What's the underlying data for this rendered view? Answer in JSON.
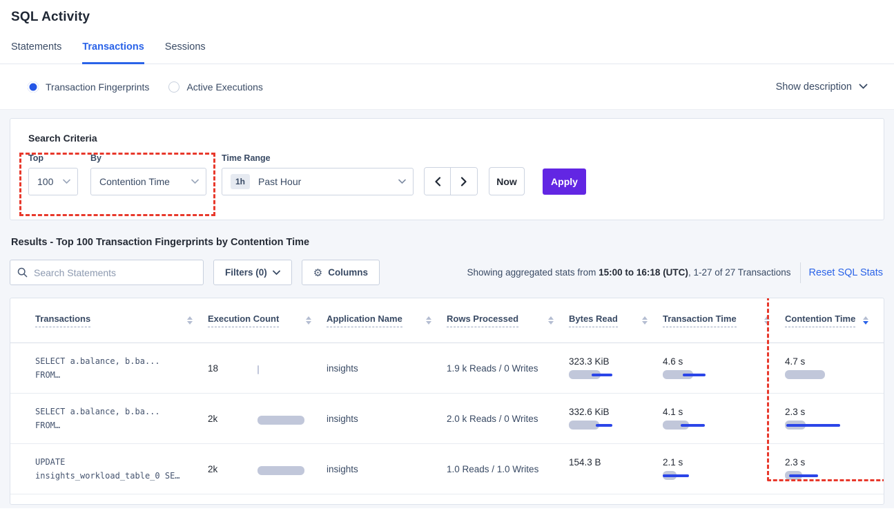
{
  "page": {
    "title": "SQL Activity"
  },
  "tabs": {
    "statements": "Statements",
    "transactions": "Transactions",
    "sessions": "Sessions"
  },
  "view_toggle": {
    "fingerprints_label": "Transaction Fingerprints",
    "active_exec_label": "Active Executions",
    "show_description_label": "Show description"
  },
  "search_criteria": {
    "heading": "Search Criteria",
    "top": {
      "label": "Top",
      "value": "100"
    },
    "by": {
      "label": "By",
      "value": "Contention Time"
    },
    "time_range": {
      "label": "Time Range",
      "badge": "1h",
      "value": "Past Hour"
    },
    "now_label": "Now",
    "apply_label": "Apply"
  },
  "results": {
    "heading": "Results - Top 100 Transaction Fingerprints by Contention Time",
    "search_placeholder": "Search Statements",
    "filters_label": "Filters (0)",
    "columns_label": "Columns",
    "stats_prefix": "Showing aggregated stats from ",
    "stats_bold": "15:00 to 16:18 (UTC)",
    "stats_suffix": ", 1-27 of 27 Transactions",
    "reset_label": "Reset SQL Stats"
  },
  "table": {
    "columns": {
      "transactions": "Transactions",
      "execution_count": "Execution Count",
      "application_name": "Application Name",
      "rows_processed": "Rows Processed",
      "bytes_read": "Bytes Read",
      "transaction_time": "Transaction Time",
      "contention_time": "Contention Time"
    },
    "sort": {
      "column": "Contention Time",
      "direction": "desc"
    },
    "rows": [
      {
        "sql_line1": "SELECT a.balance, b.ba...",
        "sql_line2": "FROM…",
        "execution_count": "18",
        "exec_bar": {
          "bar": 2
        },
        "application_name": "insights",
        "rows_processed": "1.9 k Reads / 0 Writes",
        "bytes_read": "323.3 KiB",
        "bytes_bar": {
          "bar": 46,
          "line": [
            33,
            63
          ]
        },
        "transaction_time": "4.6 s",
        "txn_bar": {
          "bar": 44,
          "line": [
            29,
            62
          ]
        },
        "contention_time": "4.7 s",
        "cont_bar": {
          "bar": 58
        }
      },
      {
        "sql_line1": "SELECT a.balance, b.ba...",
        "sql_line2": "FROM…",
        "execution_count": "2k",
        "exec_bar": {
          "bar": 68
        },
        "application_name": "insights",
        "rows_processed": "2.0 k Reads / 0 Writes",
        "bytes_read": "332.6 KiB",
        "bytes_bar": {
          "bar": 44,
          "line": [
            39,
            63
          ]
        },
        "transaction_time": "4.1 s",
        "txn_bar": {
          "bar": 38,
          "line": [
            26,
            61
          ]
        },
        "contention_time": "2.3 s",
        "cont_bar": {
          "bar": 30,
          "line": [
            2,
            80
          ]
        }
      },
      {
        "sql_line1": "UPDATE",
        "sql_line2": "insights_workload_table_0 SE…",
        "execution_count": "2k",
        "exec_bar": {
          "bar": 68
        },
        "application_name": "insights",
        "rows_processed": "1.0 Reads / 1.0 Writes",
        "bytes_read": "154.3 B",
        "bytes_bar": null,
        "transaction_time": "2.1 s",
        "txn_bar": {
          "bar": 20,
          "line": [
            0,
            38
          ]
        },
        "contention_time": "2.3 s",
        "cont_bar": {
          "bar": 25,
          "line": [
            6,
            48
          ]
        }
      }
    ]
  },
  "colors": {
    "accent_blue": "#2a63e8",
    "apply_purple": "#6226e3",
    "annotation_red": "#e8392c",
    "bar_gray": "#c1c7da",
    "bar_line_blue": "#2b45e8",
    "background_gray": "#f4f6fa"
  }
}
